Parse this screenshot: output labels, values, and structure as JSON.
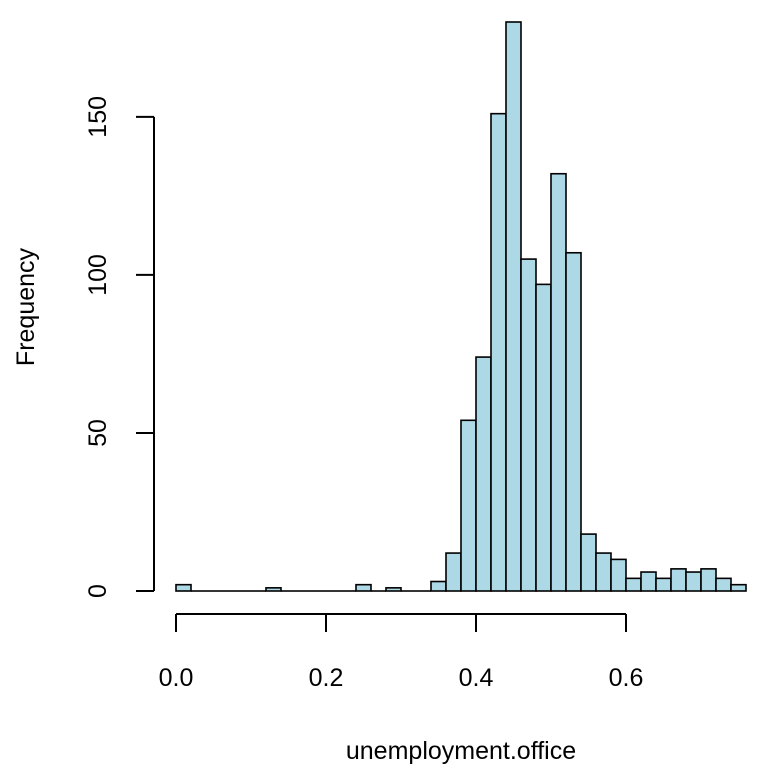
{
  "chart_data": {
    "type": "bar",
    "title": "",
    "xlabel": "unemployment.office",
    "ylabel": "Frequency",
    "bar_color": "#add8e6",
    "edge_color": "#000000",
    "xlim": [
      0.0,
      0.76
    ],
    "ylim": [
      0,
      180
    ],
    "bin_width": 0.02,
    "x_ticks": [
      {
        "value": 0.0,
        "label": "0.0"
      },
      {
        "value": 0.2,
        "label": "0.2"
      },
      {
        "value": 0.4,
        "label": "0.4"
      },
      {
        "value": 0.6,
        "label": "0.6"
      }
    ],
    "y_ticks": [
      {
        "value": 0,
        "label": "0"
      },
      {
        "value": 50,
        "label": "50"
      },
      {
        "value": 100,
        "label": "100"
      },
      {
        "value": 150,
        "label": "150"
      }
    ],
    "bins": [
      {
        "x0": 0.0,
        "x1": 0.02,
        "count": 2
      },
      {
        "x0": 0.02,
        "x1": 0.04,
        "count": 0
      },
      {
        "x0": 0.04,
        "x1": 0.06,
        "count": 0
      },
      {
        "x0": 0.06,
        "x1": 0.08,
        "count": 0
      },
      {
        "x0": 0.08,
        "x1": 0.1,
        "count": 0
      },
      {
        "x0": 0.1,
        "x1": 0.12,
        "count": 0
      },
      {
        "x0": 0.12,
        "x1": 0.14,
        "count": 1
      },
      {
        "x0": 0.14,
        "x1": 0.16,
        "count": 0
      },
      {
        "x0": 0.16,
        "x1": 0.18,
        "count": 0
      },
      {
        "x0": 0.18,
        "x1": 0.2,
        "count": 0
      },
      {
        "x0": 0.2,
        "x1": 0.22,
        "count": 0
      },
      {
        "x0": 0.22,
        "x1": 0.24,
        "count": 0
      },
      {
        "x0": 0.24,
        "x1": 0.26,
        "count": 2
      },
      {
        "x0": 0.26,
        "x1": 0.28,
        "count": 0
      },
      {
        "x0": 0.28,
        "x1": 0.3,
        "count": 1
      },
      {
        "x0": 0.3,
        "x1": 0.32,
        "count": 0
      },
      {
        "x0": 0.32,
        "x1": 0.34,
        "count": 0
      },
      {
        "x0": 0.34,
        "x1": 0.36,
        "count": 3
      },
      {
        "x0": 0.36,
        "x1": 0.38,
        "count": 12
      },
      {
        "x0": 0.38,
        "x1": 0.4,
        "count": 54
      },
      {
        "x0": 0.4,
        "x1": 0.42,
        "count": 74
      },
      {
        "x0": 0.42,
        "x1": 0.44,
        "count": 151
      },
      {
        "x0": 0.44,
        "x1": 0.46,
        "count": 180
      },
      {
        "x0": 0.46,
        "x1": 0.48,
        "count": 105
      },
      {
        "x0": 0.48,
        "x1": 0.5,
        "count": 97
      },
      {
        "x0": 0.5,
        "x1": 0.52,
        "count": 132
      },
      {
        "x0": 0.52,
        "x1": 0.54,
        "count": 107
      },
      {
        "x0": 0.54,
        "x1": 0.56,
        "count": 18
      },
      {
        "x0": 0.56,
        "x1": 0.58,
        "count": 12
      },
      {
        "x0": 0.58,
        "x1": 0.6,
        "count": 10
      },
      {
        "x0": 0.6,
        "x1": 0.62,
        "count": 4
      },
      {
        "x0": 0.62,
        "x1": 0.64,
        "count": 6
      },
      {
        "x0": 0.64,
        "x1": 0.66,
        "count": 4
      },
      {
        "x0": 0.66,
        "x1": 0.68,
        "count": 7
      },
      {
        "x0": 0.68,
        "x1": 0.7,
        "count": 6
      },
      {
        "x0": 0.7,
        "x1": 0.72,
        "count": 7
      },
      {
        "x0": 0.72,
        "x1": 0.74,
        "count": 4
      },
      {
        "x0": 0.74,
        "x1": 0.76,
        "count": 2
      }
    ]
  }
}
